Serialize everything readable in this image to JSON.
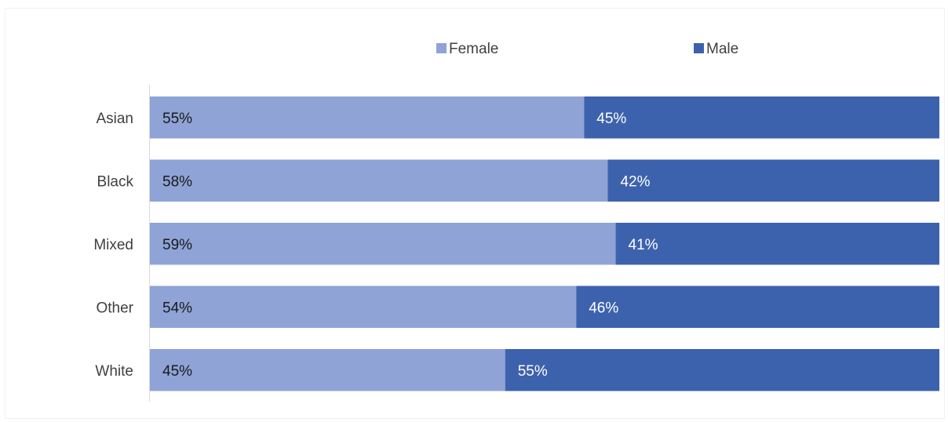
{
  "chart_data": {
    "type": "bar",
    "orientation": "horizontal",
    "stacked": "percent",
    "title": "",
    "xlabel": "",
    "ylabel": "",
    "categories": [
      "Asian",
      "Black",
      "Mixed",
      "Other",
      "White"
    ],
    "series": [
      {
        "name": "Female",
        "color": "#8fa3d6",
        "values": [
          55,
          58,
          59,
          54,
          45
        ],
        "labels": [
          "55%",
          "58%",
          "59%",
          "54%",
          "45%"
        ],
        "label_color": "#1a1a1a"
      },
      {
        "name": "Male",
        "color": "#3d62ad",
        "values": [
          45,
          42,
          41,
          46,
          55
        ],
        "labels": [
          "45%",
          "42%",
          "41%",
          "46%",
          "55%"
        ],
        "label_color": "#ffffff"
      }
    ],
    "xlim": [
      0,
      100
    ],
    "grid": false,
    "legend_position": "top"
  }
}
